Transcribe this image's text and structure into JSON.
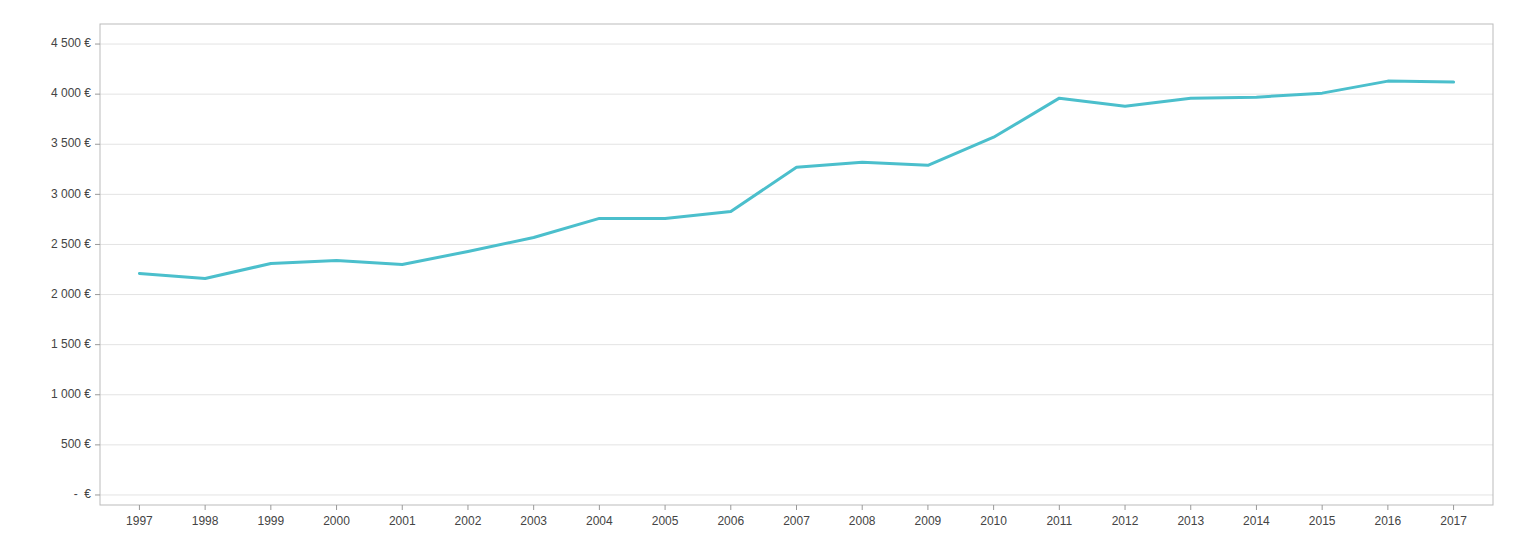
{
  "chart_data": {
    "type": "line",
    "x": [
      1997,
      1998,
      1999,
      2000,
      2001,
      2002,
      2003,
      2004,
      2005,
      2006,
      2007,
      2008,
      2009,
      2010,
      2011,
      2012,
      2013,
      2014,
      2015,
      2016,
      2017
    ],
    "values": [
      2210,
      2160,
      2310,
      2340,
      2300,
      2430,
      2570,
      2760,
      2760,
      2830,
      3270,
      3320,
      3290,
      3570,
      3960,
      3880,
      3960,
      3970,
      4010,
      4130,
      4120
    ],
    "color": "#4BBFCC",
    "xlim": [
      1996.4,
      2017.6
    ],
    "xticks": [
      1997,
      1998,
      1999,
      2000,
      2001,
      2002,
      2003,
      2004,
      2005,
      2006,
      2007,
      2008,
      2009,
      2010,
      2011,
      2012,
      2013,
      2014,
      2015,
      2016,
      2017
    ],
    "ylim": [
      -100,
      4700
    ],
    "yticks": [
      {
        "value": 0,
        "label": "-  €"
      },
      {
        "value": 500,
        "label": "500 €"
      },
      {
        "value": 1000,
        "label": "1 000 €"
      },
      {
        "value": 1500,
        "label": "1 500 €"
      },
      {
        "value": 2000,
        "label": "2 000 €"
      },
      {
        "value": 2500,
        "label": "2 500 €"
      },
      {
        "value": 3000,
        "label": "3 000 €"
      },
      {
        "value": 3500,
        "label": "3 500 €"
      },
      {
        "value": 4000,
        "label": "4 000 €"
      },
      {
        "value": 4500,
        "label": "4 500 €"
      }
    ],
    "grid": true
  }
}
